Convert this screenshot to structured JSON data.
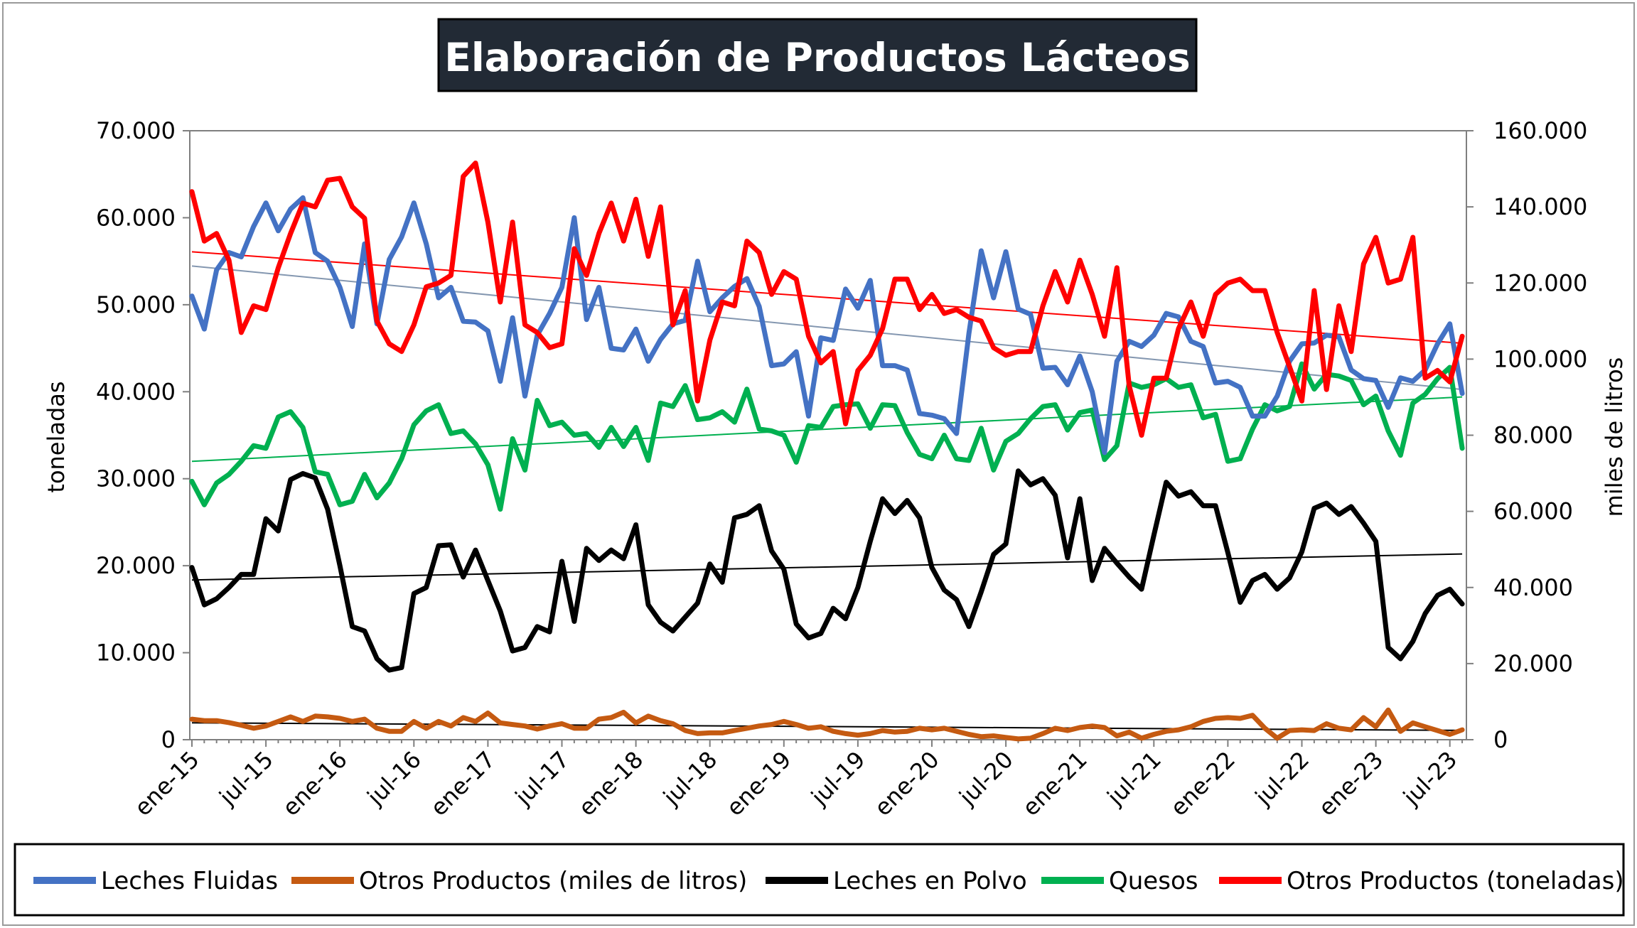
{
  "chart_data": {
    "type": "line",
    "title": "Elaboración de Productos Lácteos",
    "ylabel": "toneladas",
    "y2label": "miles de litros",
    "ylim": [
      0,
      70000
    ],
    "y2lim": [
      0,
      160000
    ],
    "y_ticks": [
      "0",
      "10.000",
      "20.000",
      "30.000",
      "40.000",
      "50.000",
      "60.000",
      "70.000"
    ],
    "y2_ticks": [
      "0",
      "20.000",
      "40.000",
      "60.000",
      "80.000",
      "100.000",
      "120.000",
      "140.000",
      "160.000"
    ],
    "x_ticks": [
      "ene-15",
      "jul-15",
      "ene-16",
      "jul-16",
      "ene-17",
      "jul-17",
      "ene-18",
      "jul-18",
      "ene-19",
      "jul-19",
      "ene-20",
      "jul-20",
      "ene-21",
      "jul-21",
      "ene-22",
      "jul-22",
      "ene-23",
      "jul-23"
    ],
    "x_start": "ene-15",
    "n_months": 104,
    "trendlines": true,
    "legend_position": "bottom",
    "series": [
      {
        "name": "Leches Fluidas",
        "color": "#4472C4",
        "axis": "left",
        "values": [
          51000,
          47200,
          54000,
          56000,
          55500,
          59000,
          61700,
          58500,
          61000,
          62300,
          56000,
          55000,
          52000,
          47500,
          57000,
          47800,
          55200,
          57800,
          61700,
          57000,
          50800,
          52000,
          48100,
          48000,
          47000,
          41200,
          48500,
          39500,
          46500,
          49000,
          52000,
          60000,
          48300,
          52000,
          45000,
          44800,
          47200,
          43500,
          46000,
          47800,
          48200,
          55000,
          49200,
          50800,
          52100,
          53000,
          49800,
          43000,
          43200,
          44600,
          37200,
          46200,
          45900,
          51800,
          49600,
          52800,
          43000,
          43000,
          42500,
          37500,
          37300,
          36900,
          35200,
          46700,
          56200,
          50800,
          56100,
          49500,
          48900,
          42700,
          42800,
          40800,
          44100,
          40000,
          33000,
          43500,
          45800,
          45200,
          46500,
          49000,
          48600,
          45800,
          45200,
          41000,
          41200,
          40500,
          37200,
          37200,
          39500,
          43500,
          45500,
          45600,
          46500,
          46300,
          42500,
          41500,
          41300,
          38200,
          41600,
          41200,
          42500,
          45500,
          47800,
          39800
        ]
      },
      {
        "name": "Otros Productos (miles de litros)",
        "color": "#C55A11",
        "axis": "right",
        "values": [
          5400,
          5000,
          5000,
          4500,
          3800,
          3000,
          3600,
          4800,
          6000,
          4800,
          6200,
          6000,
          5600,
          4800,
          5400,
          3000,
          2200,
          2200,
          4800,
          3000,
          4800,
          3600,
          5800,
          4800,
          7000,
          4400,
          4000,
          3600,
          2800,
          3600,
          4200,
          3000,
          3000,
          5400,
          5800,
          7200,
          4400,
          6200,
          5000,
          4200,
          2400,
          1600,
          1800,
          1800,
          2400,
          3000,
          3600,
          4000,
          4800,
          4000,
          3000,
          3400,
          2200,
          1600,
          1200,
          1600,
          2400,
          2000,
          2200,
          3000,
          2600,
          3000,
          2200,
          1400,
          800,
          1000,
          600,
          200,
          400,
          1600,
          3000,
          2400,
          3200,
          3600,
          3200,
          1000,
          2000,
          400,
          1400,
          2200,
          2600,
          3400,
          4800,
          5600,
          5800,
          5600,
          6400,
          3000,
          400,
          2400,
          2600,
          2400,
          4200,
          3000,
          2600,
          5800,
          3400,
          7800,
          2200,
          4400,
          3400,
          2400,
          1400,
          2600
        ]
      },
      {
        "name": "Leches en Polvo",
        "color": "#000000",
        "axis": "left",
        "values": [
          19800,
          15500,
          16200,
          17500,
          19000,
          19000,
          25400,
          24000,
          29900,
          30600,
          30100,
          26500,
          20000,
          13000,
          12500,
          9300,
          8000,
          8300,
          16800,
          17500,
          22300,
          22400,
          18700,
          21800,
          18300,
          14800,
          10200,
          10600,
          13000,
          12400,
          20500,
          13600,
          22000,
          20600,
          21800,
          20800,
          24700,
          15500,
          13500,
          12500,
          14100,
          15700,
          20200,
          18100,
          25500,
          25900,
          26900,
          21700,
          19600,
          13300,
          11700,
          12200,
          15100,
          13900,
          17500,
          22800,
          27700,
          26000,
          27500,
          25500,
          19800,
          17200,
          16100,
          13000,
          17000,
          21300,
          22500,
          30900,
          29300,
          30000,
          28100,
          20900,
          27700,
          18300,
          22000,
          20300,
          18700,
          17300,
          23500,
          29600,
          28000,
          28500,
          26900,
          26900,
          21500,
          15800,
          18300,
          19000,
          17300,
          18600,
          21600,
          26600,
          27200,
          25900,
          26800,
          24900,
          22800,
          10600,
          9300,
          11300,
          14500,
          16600,
          17300,
          15600
        ]
      },
      {
        "name": "Quesos",
        "color": "#00B050",
        "axis": "left",
        "values": [
          29700,
          27000,
          29500,
          30500,
          32000,
          33800,
          33500,
          37100,
          37700,
          35900,
          30800,
          30500,
          27000,
          27400,
          30500,
          27800,
          29500,
          32300,
          36200,
          37800,
          38500,
          35200,
          35500,
          34000,
          31600,
          26500,
          34600,
          31000,
          39000,
          36100,
          36500,
          35000,
          35200,
          33600,
          35900,
          33700,
          35900,
          32100,
          38700,
          38300,
          40700,
          36800,
          37000,
          37700,
          36500,
          40300,
          35700,
          35500,
          35000,
          31900,
          36100,
          35900,
          38300,
          38500,
          38600,
          35800,
          38500,
          38400,
          35300,
          32800,
          32300,
          35000,
          32300,
          32100,
          35800,
          31000,
          34300,
          35200,
          36900,
          38300,
          38500,
          35600,
          37600,
          37900,
          32200,
          33800,
          41000,
          40500,
          40800,
          41500,
          40500,
          40800,
          37000,
          37400,
          32000,
          32300,
          35700,
          38500,
          37800,
          38300,
          43200,
          40300,
          42000,
          41800,
          41300,
          38500,
          39500,
          35500,
          32700,
          38700,
          39700,
          41500,
          42800,
          33500
        ]
      },
      {
        "name": "Otros Productos (toneladas)",
        "color": "#FF0000",
        "axis": "right",
        "values": [
          144000,
          131000,
          133000,
          126000,
          107000,
          114000,
          113000,
          124000,
          133000,
          141000,
          140000,
          147000,
          147500,
          140000,
          137000,
          110000,
          104000,
          102000,
          109000,
          119000,
          120000,
          122000,
          148000,
          151500,
          136000,
          115000,
          136000,
          109000,
          107000,
          103000,
          104000,
          129000,
          122000,
          133000,
          141000,
          131000,
          142000,
          127000,
          140000,
          109000,
          118000,
          89000,
          105000,
          115000,
          114000,
          131000,
          128000,
          117000,
          123000,
          121000,
          106000,
          99000,
          102000,
          83000,
          97000,
          101000,
          108000,
          121000,
          121000,
          113000,
          117000,
          112000,
          113000,
          111000,
          110000,
          103000,
          101000,
          102000,
          102000,
          114000,
          123000,
          115000,
          126000,
          117000,
          106000,
          124000,
          93000,
          80000,
          95000,
          95000,
          108000,
          115000,
          106000,
          117000,
          120000,
          121000,
          118000,
          118000,
          107000,
          98000,
          89000,
          118000,
          92000,
          114000,
          102000,
          125000,
          132000,
          120000,
          121000,
          132000,
          95000,
          97000,
          94000,
          106000
        ]
      }
    ]
  }
}
